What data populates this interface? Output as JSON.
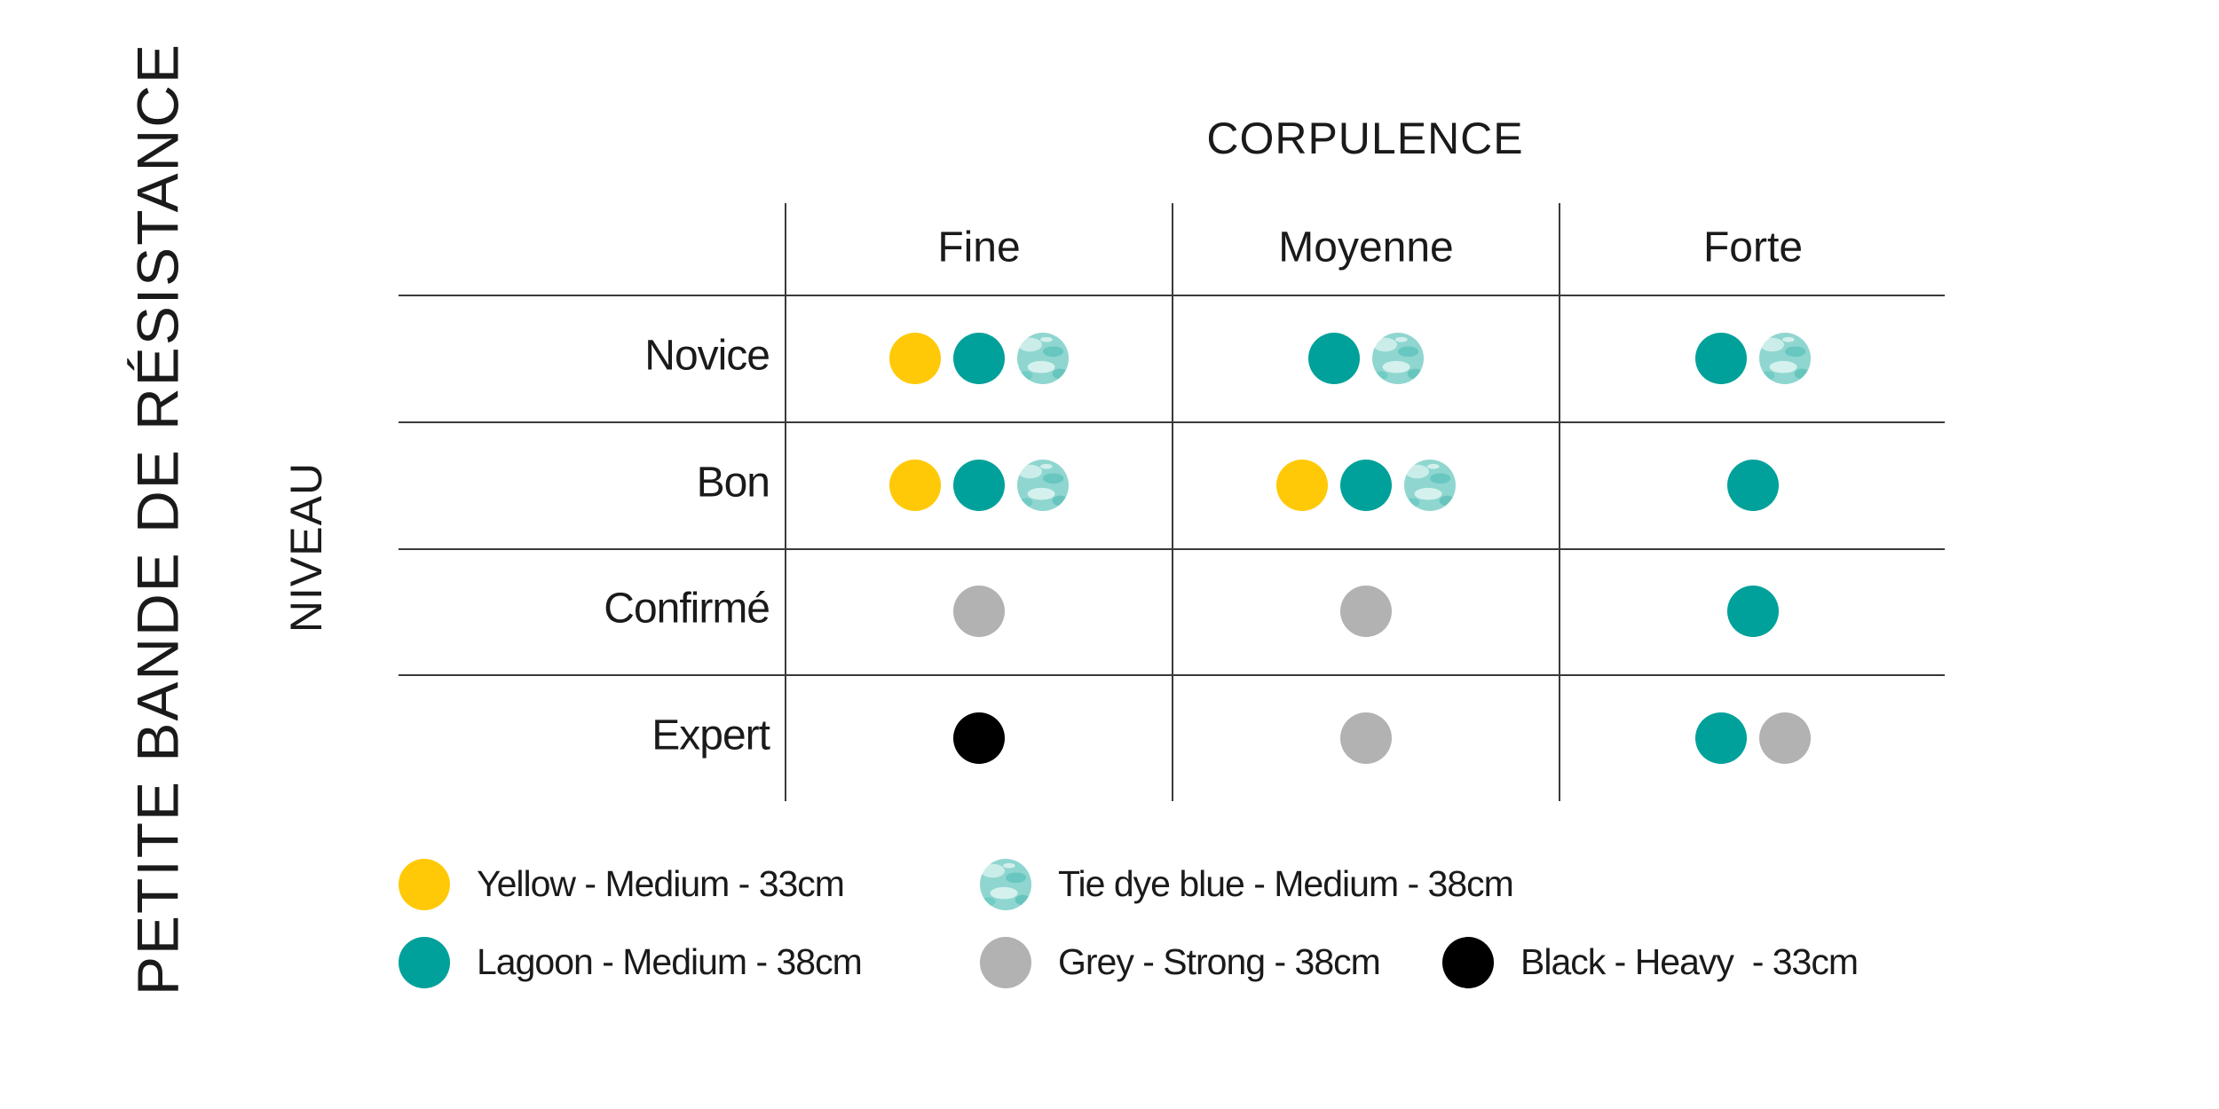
{
  "title": "PETITE BANDE DE RÉSISTANCE",
  "row_axis_label": "NIVEAU",
  "column_axis_label": "CORPULENCE",
  "table": {
    "columns": [
      "Fine",
      "Moyenne",
      "Forte"
    ],
    "rows": [
      {
        "label": "Novice",
        "cells": [
          [
            0,
            1,
            2
          ],
          [
            1,
            2
          ],
          [
            1,
            2
          ]
        ]
      },
      {
        "label": "Bon",
        "cells": [
          [
            0,
            1,
            2
          ],
          [
            0,
            1,
            2
          ],
          [
            1
          ]
        ]
      },
      {
        "label": "Confirmé",
        "cells": [
          [
            3
          ],
          [
            3
          ],
          [
            1
          ]
        ]
      },
      {
        "label": "Expert",
        "cells": [
          [
            4
          ],
          [
            3
          ],
          [
            1,
            3
          ]
        ]
      }
    ]
  },
  "legend": [
    {
      "label": "Yellow - Medium - 33cm",
      "color": "#ffc907"
    },
    {
      "label": "Lagoon - Medium - 38cm",
      "color": "#00a19a"
    },
    {
      "label": "Tie dye blue - Medium - 38cm",
      "color": "#8fd6d0",
      "texture": true
    },
    {
      "label": "Grey - Strong - 38cm",
      "color": "#b2b2b2"
    },
    {
      "label": "Black - Heavy  - 33cm",
      "color": "#000000"
    }
  ]
}
